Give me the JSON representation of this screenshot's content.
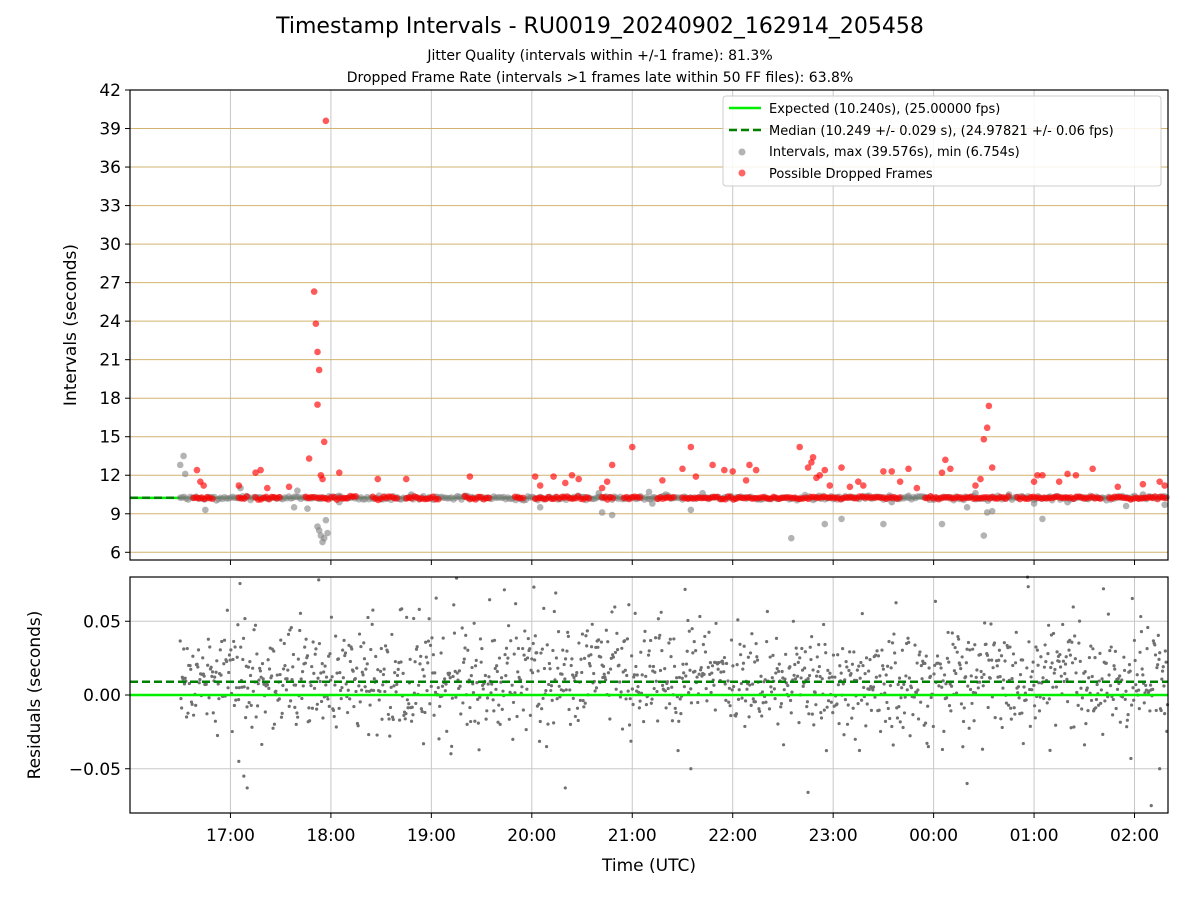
{
  "chart_data": [
    {
      "type": "scatter",
      "title": "Timestamp Intervals - RU0019_20240902_162914_205458",
      "subtitle_lines": [
        "Jitter Quality (intervals within +/-1 frame): 81.3%",
        "Dropped Frame Rate (intervals >1 frames late within 50 FF files): 63.8%"
      ],
      "xlabel": "",
      "ylabel": "Intervals (seconds)",
      "ylim": [
        5.4,
        42
      ],
      "yticks": [
        6,
        9,
        12,
        15,
        18,
        21,
        24,
        27,
        30,
        33,
        36,
        39,
        42
      ],
      "x_range": [
        "16:00",
        "02:20"
      ],
      "xticks": [
        "17:00",
        "18:00",
        "19:00",
        "20:00",
        "21:00",
        "22:00",
        "23:00",
        "00:00",
        "01:00",
        "02:00"
      ],
      "grid": "horizontal goldenrod lines at y ticks, vertical grey lines at x ticks",
      "legend_placement": "top-right",
      "colors": {
        "expected": "#00ee00",
        "median": "#008000",
        "intervals": "#808080",
        "dropped": "#ff0000",
        "grid_h": "#d2b46e",
        "grid_v": "#c8c8c8"
      },
      "series": [
        {
          "name": "Expected (10.240s), (25.00000 fps)",
          "kind": "hline",
          "y": 10.24
        },
        {
          "name": "Median (10.249 +/- 0.029 s), (24.97821 +/- 0.06 fps)",
          "kind": "dashed-hline",
          "y": 10.249
        },
        {
          "name": "Intervals, max (39.576s), min (6.754s)",
          "kind": "scatter",
          "x_start": "16:30",
          "x_end": "02:20",
          "typical_y": 10.24,
          "max": 39.576,
          "min": 6.754,
          "low_outliers": [
            [
              "16:30",
              12.8
            ],
            [
              "16:32",
              13.5
            ],
            [
              "16:33",
              12.1
            ],
            [
              "16:45",
              9.3
            ],
            [
              "17:06",
              11.0
            ],
            [
              "17:38",
              9.5
            ],
            [
              "17:40",
              10.8
            ],
            [
              "17:46",
              9.4
            ],
            [
              "17:52",
              8.0
            ],
            [
              "17:53",
              7.7
            ],
            [
              "17:54",
              7.3
            ],
            [
              "17:55",
              6.8
            ],
            [
              "17:56",
              7.1
            ],
            [
              "17:57",
              8.5
            ],
            [
              "17:58",
              7.5
            ],
            [
              "18:05",
              9.9
            ],
            [
              "18:48",
              10.5
            ],
            [
              "19:20",
              10.4
            ],
            [
              "20:05",
              9.5
            ],
            [
              "20:40",
              10.6
            ],
            [
              "20:42",
              9.1
            ],
            [
              "20:48",
              8.9
            ],
            [
              "21:10",
              10.7
            ],
            [
              "21:12",
              9.8
            ],
            [
              "21:20",
              10.5
            ],
            [
              "21:35",
              9.3
            ],
            [
              "21:42",
              10.6
            ],
            [
              "22:35",
              7.1
            ],
            [
              "22:55",
              8.2
            ],
            [
              "23:05",
              8.6
            ],
            [
              "23:30",
              8.2
            ],
            [
              "23:35",
              9.9
            ],
            [
              "23:45",
              10.4
            ],
            [
              "00:05",
              8.2
            ],
            [
              "00:20",
              9.5
            ],
            [
              "00:25",
              10.6
            ],
            [
              "00:30",
              7.3
            ],
            [
              "00:32",
              9.1
            ],
            [
              "00:35",
              9.2
            ],
            [
              "00:45",
              10.5
            ],
            [
              "01:00",
              9.8
            ],
            [
              "01:05",
              8.6
            ],
            [
              "01:20",
              9.9
            ],
            [
              "01:55",
              9.6
            ],
            [
              "02:05",
              10.5
            ],
            [
              "02:18",
              9.7
            ]
          ]
        },
        {
          "name": "Possible Dropped Frames",
          "kind": "scatter",
          "typical_y": 10.24,
          "runs": [
            [
              "16:38",
              "16:50"
            ],
            [
              "17:05",
              "17:10"
            ],
            [
              "17:15",
              "17:30"
            ],
            [
              "17:45",
              "17:50"
            ],
            [
              "17:52",
              "18:00"
            ],
            [
              "18:02",
              "18:15"
            ],
            [
              "18:25",
              "18:40"
            ],
            [
              "18:45",
              "19:05"
            ],
            [
              "19:20",
              "19:35"
            ],
            [
              "19:50",
              "19:55"
            ],
            [
              "20:02",
              "20:35"
            ],
            [
              "20:42",
              "20:50"
            ],
            [
              "20:55",
              "21:05"
            ],
            [
              "21:15",
              "21:25"
            ],
            [
              "21:30",
              "23:40"
            ],
            [
              "23:55",
              "00:45"
            ],
            [
              "00:50",
              "01:40"
            ],
            [
              "01:45",
              "02:20"
            ]
          ],
          "high_points": [
            [
              "16:40",
              12.4
            ],
            [
              "16:42",
              11.5
            ],
            [
              "16:44",
              11.2
            ],
            [
              "17:05",
              11.2
            ],
            [
              "17:15",
              12.2
            ],
            [
              "17:18",
              12.4
            ],
            [
              "17:22",
              11.0
            ],
            [
              "17:35",
              11.1
            ],
            [
              "17:47",
              13.3
            ],
            [
              "17:50",
              26.3
            ],
            [
              "17:51",
              23.8
            ],
            [
              "17:52",
              21.6
            ],
            [
              "17:53",
              20.2
            ],
            [
              "17:52",
              17.5
            ],
            [
              "17:54",
              12.0
            ],
            [
              "17:55",
              11.7
            ],
            [
              "17:56",
              14.6
            ],
            [
              "17:57",
              39.6
            ],
            [
              "18:05",
              12.2
            ],
            [
              "18:28",
              11.7
            ],
            [
              "18:45",
              11.7
            ],
            [
              "19:23",
              11.9
            ],
            [
              "20:02",
              11.9
            ],
            [
              "20:05",
              11.2
            ],
            [
              "20:13",
              11.9
            ],
            [
              "20:20",
              11.4
            ],
            [
              "20:24",
              12.0
            ],
            [
              "20:28",
              11.7
            ],
            [
              "20:42",
              11.0
            ],
            [
              "20:45",
              11.5
            ],
            [
              "20:48",
              12.8
            ],
            [
              "21:00",
              14.2
            ],
            [
              "21:18",
              11.6
            ],
            [
              "21:30",
              12.5
            ],
            [
              "21:35",
              14.2
            ],
            [
              "21:38",
              11.9
            ],
            [
              "21:48",
              12.8
            ],
            [
              "21:55",
              12.4
            ],
            [
              "22:00",
              12.3
            ],
            [
              "22:08",
              11.6
            ],
            [
              "22:10",
              12.8
            ],
            [
              "22:14",
              12.4
            ],
            [
              "22:40",
              14.2
            ],
            [
              "22:45",
              12.6
            ],
            [
              "22:47",
              13.0
            ],
            [
              "22:48",
              13.4
            ],
            [
              "22:50",
              11.8
            ],
            [
              "22:52",
              12.0
            ],
            [
              "22:55",
              12.4
            ],
            [
              "22:58",
              11.2
            ],
            [
              "23:05",
              12.6
            ],
            [
              "23:10",
              11.1
            ],
            [
              "23:15",
              11.5
            ],
            [
              "23:18",
              11.2
            ],
            [
              "23:30",
              12.3
            ],
            [
              "23:35",
              12.3
            ],
            [
              "23:40",
              11.5
            ],
            [
              "23:45",
              12.5
            ],
            [
              "23:50",
              11.0
            ],
            [
              "00:05",
              12.2
            ],
            [
              "00:07",
              13.2
            ],
            [
              "00:10",
              12.5
            ],
            [
              "00:25",
              11.2
            ],
            [
              "00:28",
              11.7
            ],
            [
              "00:30",
              14.8
            ],
            [
              "00:32",
              15.7
            ],
            [
              "00:33",
              17.4
            ],
            [
              "00:35",
              12.6
            ],
            [
              "01:00",
              11.5
            ],
            [
              "01:02",
              12.0
            ],
            [
              "01:05",
              12.0
            ],
            [
              "01:15",
              11.5
            ],
            [
              "01:20",
              12.1
            ],
            [
              "01:25",
              12.0
            ],
            [
              "01:35",
              12.5
            ],
            [
              "01:50",
              11.1
            ],
            [
              "02:05",
              11.3
            ],
            [
              "02:15",
              11.5
            ],
            [
              "02:18",
              11.2
            ]
          ]
        }
      ]
    },
    {
      "type": "scatter",
      "title": "",
      "xlabel": "Time (UTC)",
      "ylabel": "Residuals (seconds)",
      "ylim": [
        -0.08,
        0.08
      ],
      "yticks": [
        -0.05,
        0.0,
        0.05
      ],
      "ytick_labels": [
        "−0.05",
        "0.00",
        "0.05"
      ],
      "xticks": [
        "17:00",
        "18:00",
        "19:00",
        "20:00",
        "21:00",
        "22:00",
        "23:00",
        "00:00",
        "01:00",
        "02:00"
      ],
      "grid": "grey lines at both axes ticks",
      "series": [
        {
          "kind": "hline",
          "y": 0.0,
          "color": "#00ee00"
        },
        {
          "kind": "dashed-hline",
          "y": 0.009,
          "color": "#008000"
        },
        {
          "kind": "scatter",
          "color": "#707070",
          "x_start": "16:30",
          "x_end": "02:20",
          "typical_range": [
            -0.03,
            0.06
          ],
          "center": 0.01,
          "outliers": [
            [
              "17:05",
              -0.045
            ],
            [
              "17:08",
              -0.055
            ],
            [
              "17:10",
              -0.063
            ],
            [
              "20:20",
              -0.063
            ],
            [
              "21:35",
              -0.05
            ],
            [
              "22:45",
              -0.066
            ],
            [
              "00:20",
              -0.06
            ],
            [
              "02:10",
              -0.075
            ],
            [
              "02:15",
              -0.05
            ]
          ]
        }
      ]
    }
  ]
}
